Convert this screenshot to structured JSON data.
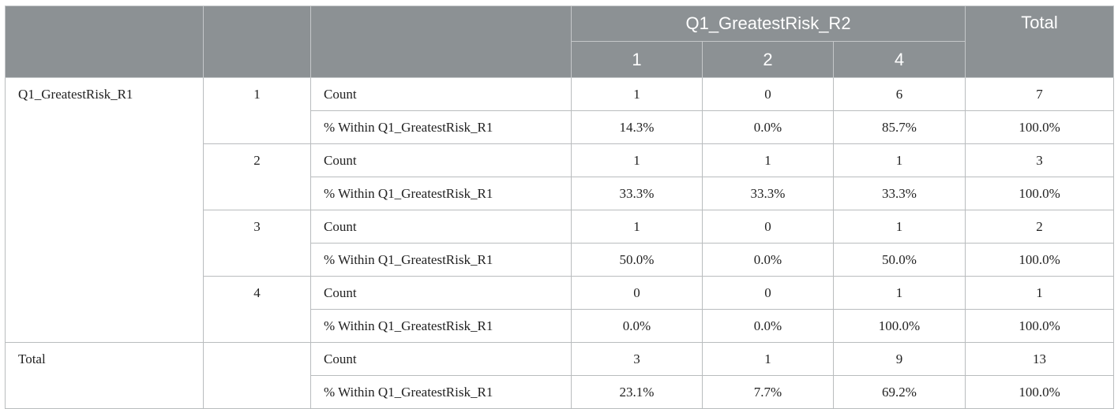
{
  "header": {
    "group_label": "Q1_GreatestRisk_R2",
    "total_label": "Total",
    "columns": [
      "1",
      "2",
      "4"
    ]
  },
  "row_variable": "Q1_GreatestRisk_R1",
  "total_row_label": "Total",
  "stat_labels": {
    "count": "Count",
    "pct": "% Within Q1_GreatestRisk_R1"
  },
  "rows": [
    {
      "category": "1",
      "count": [
        "1",
        "0",
        "6",
        "7"
      ],
      "pct": [
        "14.3%",
        "0.0%",
        "85.7%",
        "100.0%"
      ]
    },
    {
      "category": "2",
      "count": [
        "1",
        "1",
        "1",
        "3"
      ],
      "pct": [
        "33.3%",
        "33.3%",
        "33.3%",
        "100.0%"
      ]
    },
    {
      "category": "3",
      "count": [
        "1",
        "0",
        "1",
        "2"
      ],
      "pct": [
        "50.0%",
        "0.0%",
        "50.0%",
        "100.0%"
      ]
    },
    {
      "category": "4",
      "count": [
        "0",
        "0",
        "1",
        "1"
      ],
      "pct": [
        "0.0%",
        "0.0%",
        "100.0%",
        "100.0%"
      ]
    }
  ],
  "total": {
    "count": [
      "3",
      "1",
      "9",
      "13"
    ],
    "pct": [
      "23.1%",
      "7.7%",
      "69.2%",
      "100.0%"
    ]
  },
  "colors": {
    "header_bg": "#8c9194",
    "header_text": "#ffffff",
    "border": "#b9bcbe"
  }
}
